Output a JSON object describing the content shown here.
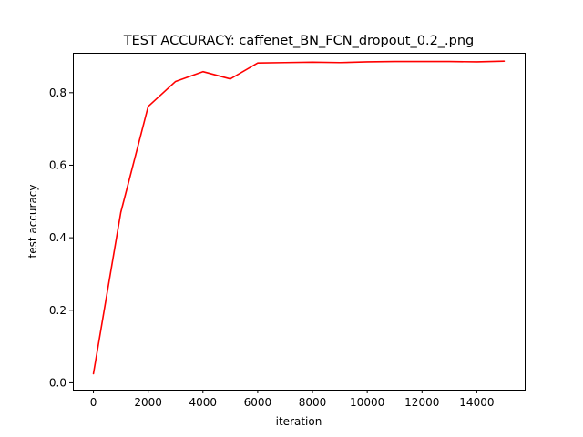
{
  "chart_data": {
    "type": "line",
    "title": "TEST ACCURACY: caffenet_BN_FCN_dropout_0.2_.png",
    "xlabel": "iteration",
    "ylabel": "test accuracy",
    "xlim": [
      -750,
      15750
    ],
    "ylim": [
      -0.019,
      0.91
    ],
    "xticks": [
      0,
      2000,
      4000,
      6000,
      8000,
      10000,
      12000,
      14000
    ],
    "xtick_labels": [
      "0",
      "2000",
      "4000",
      "6000",
      "8000",
      "10000",
      "12000",
      "14000"
    ],
    "yticks": [
      0.0,
      0.2,
      0.4,
      0.6,
      0.8
    ],
    "ytick_labels": [
      "0.0",
      "0.2",
      "0.4",
      "0.6",
      "0.8"
    ],
    "grid": false,
    "series": [
      {
        "color": "#ff0000",
        "x": [
          0,
          1000,
          2000,
          3000,
          4000,
          5000,
          6000,
          7000,
          8000,
          9000,
          10000,
          11000,
          12000,
          13000,
          14000,
          15000
        ],
        "y": [
          0.025,
          0.47,
          0.762,
          0.831,
          0.858,
          0.838,
          0.882,
          0.883,
          0.884,
          0.883,
          0.885,
          0.886,
          0.886,
          0.886,
          0.885,
          0.887
        ]
      }
    ]
  }
}
